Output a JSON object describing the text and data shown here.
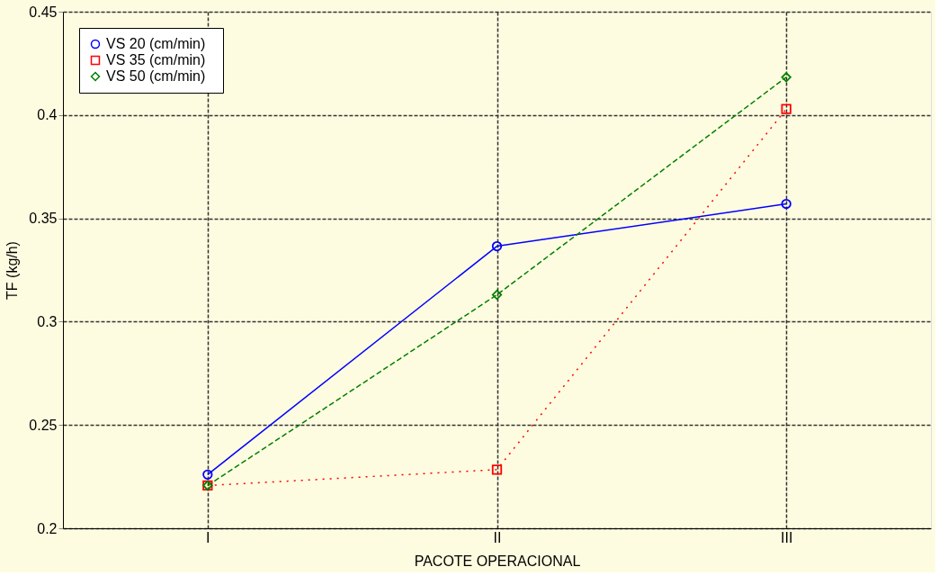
{
  "chart_data": {
    "type": "line",
    "xlabel": "PACOTE OPERACIONAL",
    "ylabel": "TF (kg/h)",
    "categories": [
      "I",
      "II",
      "III"
    ],
    "series": [
      {
        "name": "VS   20 (cm/min)",
        "color": "#0000ff",
        "values": [
          0.226,
          0.3365,
          0.357
        ],
        "marker": "circle",
        "line_style": "solid"
      },
      {
        "name": "VS   35 (cm/min)",
        "color": "#ff0000",
        "values": [
          0.2207,
          0.2284,
          0.4029
        ],
        "marker": "square",
        "line_style": "dotted"
      },
      {
        "name": "VS   50 (cm/min)",
        "color": "#008000",
        "values": [
          0.2207,
          0.313,
          0.4183
        ],
        "marker": "diamond",
        "line_style": "dashed"
      }
    ],
    "ylim": [
      0.2,
      0.45
    ],
    "yticks": [
      0.2,
      0.25,
      0.3,
      0.35,
      0.4,
      0.45
    ],
    "grid": true,
    "legend": "top left"
  }
}
